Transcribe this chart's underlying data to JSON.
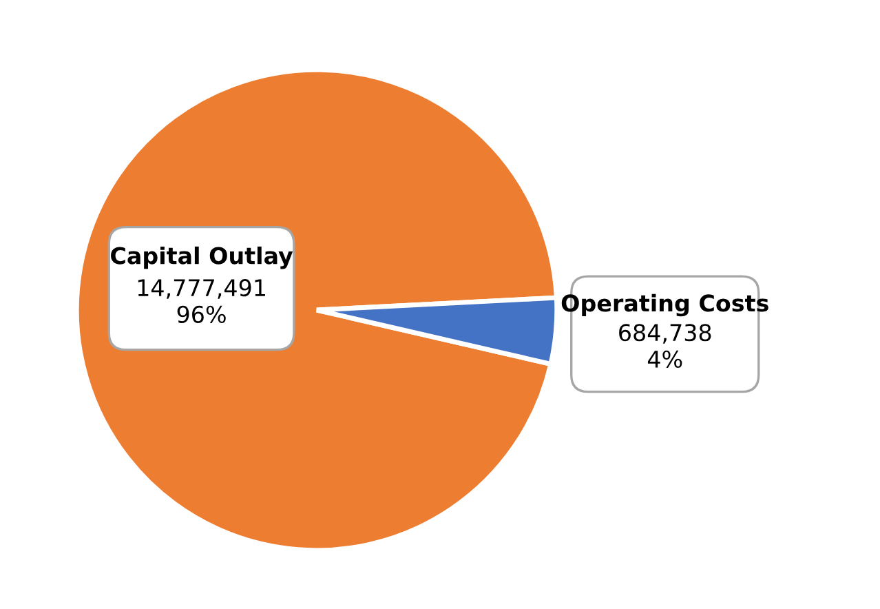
{
  "chart_data": {
    "type": "pie",
    "categories": [
      "Capital Outlay",
      "Operating Costs"
    ],
    "values": [
      14777491,
      684738
    ],
    "colors": [
      "#ed7d31",
      "#4472c4"
    ],
    "value_labels": [
      "14,777,491\n96%",
      "684,738\n4%"
    ]
  }
}
